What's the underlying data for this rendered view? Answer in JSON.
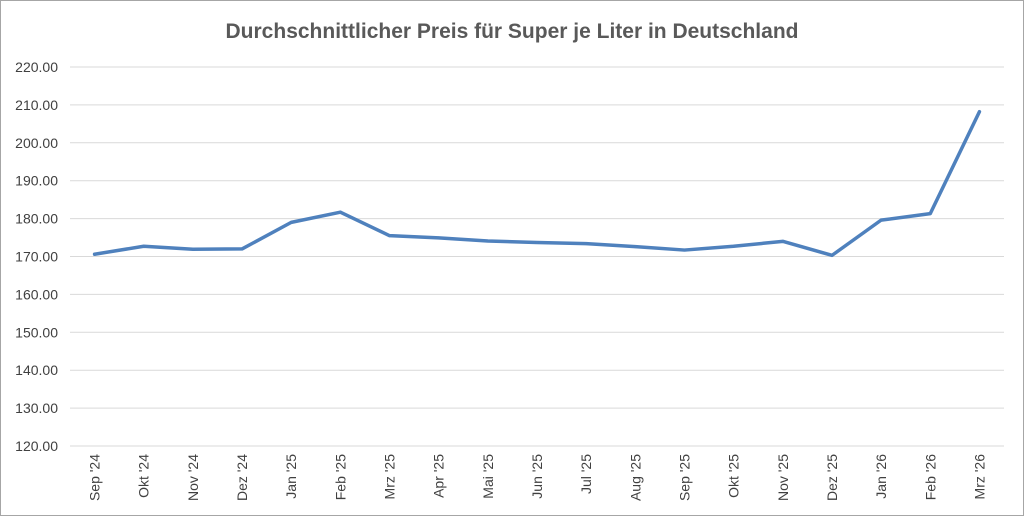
{
  "chart_data": {
    "type": "line",
    "title": "Durchschnittlicher Preis für Super je Liter in Deutschland",
    "xlabel": "",
    "ylabel": "",
    "ylim": [
      120,
      220
    ],
    "yticks": [
      "120.00",
      "130.00",
      "140.00",
      "150.00",
      "160.00",
      "170.00",
      "180.00",
      "190.00",
      "200.00",
      "210.00",
      "220.00"
    ],
    "grid": true,
    "legend": "none",
    "color": "#4f81bd",
    "categories": [
      "Sep '24",
      "Okt '24",
      "Nov '24",
      "Dez '24",
      "Jan '25",
      "Feb '25",
      "Mrz '25",
      "Apr '25",
      "Mai '25",
      "Jun '25",
      "Jul '25",
      "Aug '25",
      "Sep '25",
      "Okt '25",
      "Nov '25",
      "Dez '25",
      "Jan '26",
      "Feb '26",
      "Mrz '26"
    ],
    "series": [
      {
        "name": "Super",
        "values": [
          170.6,
          172.7,
          171.9,
          172.0,
          179.0,
          181.7,
          175.5,
          174.9,
          174.1,
          173.7,
          173.4,
          172.6,
          171.7,
          172.7,
          174.0,
          170.3,
          179.6,
          181.3,
          208.2
        ]
      }
    ]
  }
}
